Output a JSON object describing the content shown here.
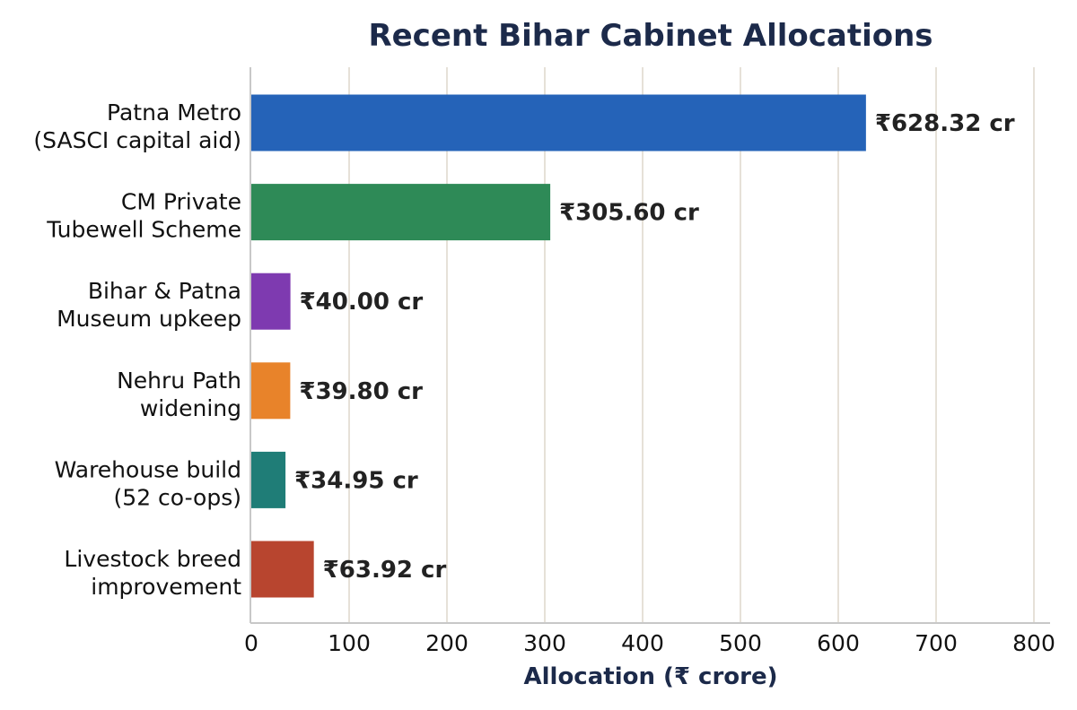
{
  "chart_data": {
    "type": "bar",
    "orientation": "horizontal",
    "title": "Recent Bihar Cabinet Allocations",
    "xlabel": "Allocation (₹ crore)",
    "ylabel": "",
    "xlim": [
      0,
      820
    ],
    "xticks": [
      0,
      100,
      200,
      300,
      400,
      500,
      600,
      700,
      800
    ],
    "grid": "vertical",
    "categories": [
      [
        "Patna Metro",
        "(SASCI capital aid)"
      ],
      [
        "CM Private",
        "Tubewell Scheme"
      ],
      [
        "Bihar & Patna",
        "Museum upkeep"
      ],
      [
        "Nehru Path",
        "widening"
      ],
      [
        "Warehouse build",
        "(52 co-ops)"
      ],
      [
        "Livestock breed",
        "improvement"
      ]
    ],
    "values": [
      628.32,
      305.6,
      40.0,
      39.8,
      34.95,
      63.92
    ],
    "value_labels": [
      "₹628.32 cr",
      "₹305.60 cr",
      "₹40.00 cr",
      "₹39.80 cr",
      "₹34.95 cr",
      "₹63.92 cr"
    ],
    "colors": [
      "#2563b8",
      "#2e8a57",
      "#7e3ab0",
      "#e8832a",
      "#1f7d77",
      "#b8452f"
    ]
  }
}
